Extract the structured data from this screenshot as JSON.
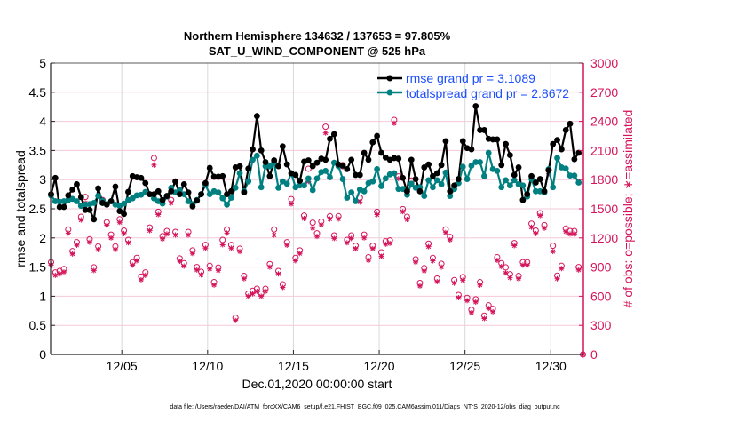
{
  "chart_data": {
    "type": "line",
    "title": "Northern Hemisphere 134632 / 137653 = 97.805%",
    "subtitle": "SAT_U_WIND_COMPONENT @ 525 hPa",
    "xlabel": "Dec.01,2020 00:00:00 start",
    "ylabel_left": "rmse and totalspread",
    "ylabel_right": "# of obs: o=possible; ∗=assimilated",
    "footer": "data file: /Users/raeder/DAI/ATM_forcXX/CAM6_setup/f.e21.FHIST_BGC.f09_025.CAM6assim.011/Diags_NTrS_2020-12/obs_diag_output.nc",
    "x_units": "days since Dec.01,2020 00:00",
    "xlim": [
      -0.15,
      30.9
    ],
    "ylim_left": [
      0,
      5
    ],
    "ylim_right": [
      0,
      3000
    ],
    "x_start": -0.125,
    "x_step": 0.25,
    "x_ticks": [
      {
        "value": 4,
        "label": "12/05"
      },
      {
        "value": 9,
        "label": "12/10"
      },
      {
        "value": 14,
        "label": "12/15"
      },
      {
        "value": 19,
        "label": "12/20"
      },
      {
        "value": 24,
        "label": "12/25"
      },
      {
        "value": 29,
        "label": "12/30"
      }
    ],
    "y_left_ticks": [
      "0",
      "0.5",
      "1",
      "1.5",
      "2",
      "2.5",
      "3",
      "3.5",
      "4",
      "4.5",
      "5"
    ],
    "y_right_ticks": [
      "0",
      "300",
      "600",
      "900",
      "1200",
      "1500",
      "1800",
      "2100",
      "2400",
      "2700",
      "3000"
    ],
    "grid": true,
    "legend_position": "top-right",
    "colors": {
      "rmse": "#000000",
      "totalspread": "#008080",
      "obs": "#d4145a",
      "legend_text": "#1a4dff",
      "grid_h": "#f5c9d9",
      "grid_v": "#d9d9d9"
    },
    "series": [
      {
        "name": "rmse",
        "legend": "rmse grand pr = 3.1089",
        "axis": "left",
        "values": [
          2.75,
          3.03,
          2.53,
          2.53,
          2.73,
          2.83,
          2.92,
          2.7,
          2.48,
          2.48,
          2.32,
          2.85,
          2.6,
          2.57,
          2.63,
          2.88,
          2.46,
          2.41,
          2.79,
          3.06,
          3.04,
          3.03,
          2.94,
          2.75,
          2.75,
          2.8,
          2.65,
          2.72,
          2.8,
          2.97,
          2.75,
          2.92,
          2.78,
          2.54,
          2.64,
          2.75,
          2.94,
          3.2,
          3.05,
          3.05,
          3.06,
          2.75,
          2.8,
          3.21,
          3.23,
          2.78,
          3.19,
          3.52,
          4.09,
          3.5,
          3.3,
          3.06,
          3.33,
          3.23,
          3.57,
          3.26,
          3.11,
          3.08,
          2.98,
          3.31,
          3.33,
          3.23,
          3.29,
          3.36,
          3.34,
          3.7,
          3.78,
          3.26,
          3.24,
          3.18,
          3.34,
          3.08,
          3.08,
          3.46,
          3.34,
          3.64,
          3.75,
          3.46,
          3.38,
          3.34,
          3.37,
          3.36,
          3.03,
          2.8,
          3.34,
          3.01,
          2.8,
          3.21,
          3.26,
          3.06,
          3.11,
          3.25,
          3.66,
          2.8,
          2.9,
          3.01,
          3.66,
          3.54,
          3.52,
          4.26,
          3.85,
          3.85,
          3.7,
          3.69,
          3.69,
          3.25,
          3.61,
          3.42,
          3.08,
          3.21,
          2.65,
          2.75,
          3.06,
          2.95,
          3.01,
          2.8,
          3.16,
          3.61,
          3.68,
          3.52,
          3.85,
          3.96,
          3.35,
          3.46
        ]
      },
      {
        "name": "totalspread",
        "legend": "totalspread grand pr = 2.8672",
        "axis": "left",
        "values": [
          2.73,
          2.63,
          2.62,
          2.63,
          2.65,
          2.67,
          2.63,
          2.55,
          2.57,
          2.58,
          2.6,
          2.72,
          2.64,
          2.58,
          2.63,
          2.57,
          2.55,
          2.59,
          2.65,
          2.68,
          2.73,
          2.74,
          2.79,
          2.75,
          2.68,
          2.63,
          2.59,
          2.71,
          2.86,
          2.78,
          2.82,
          2.75,
          2.63,
          2.58,
          2.65,
          2.75,
          2.91,
          2.75,
          2.8,
          2.78,
          2.68,
          2.57,
          2.69,
          2.86,
          3.11,
          2.8,
          2.97,
          3.34,
          3.41,
          2.87,
          3.23,
          3.23,
          3.29,
          2.86,
          2.97,
          2.93,
          3.11,
          2.87,
          2.9,
          2.9,
          3.02,
          2.82,
          3.02,
          3.13,
          3.15,
          3.04,
          3.29,
          3.23,
          3.01,
          2.69,
          2.78,
          2.63,
          2.83,
          2.8,
          2.94,
          2.97,
          3.18,
          2.89,
          3.02,
          3.09,
          3.11,
          2.84,
          2.84,
          2.74,
          2.93,
          2.86,
          2.87,
          2.72,
          2.99,
          2.87,
          2.99,
          2.92,
          3.12,
          2.72,
          2.84,
          2.94,
          3.22,
          3.01,
          3.24,
          3.3,
          3.3,
          3.06,
          3.46,
          3.18,
          3.15,
          2.87,
          2.99,
          2.9,
          2.99,
          2.92,
          2.9,
          2.71,
          3.01,
          2.8,
          2.8,
          2.78,
          3.18,
          2.87,
          3.37,
          3.21,
          3.19,
          3.07,
          3.07,
          2.95
        ]
      },
      {
        "name": "obs_possible",
        "axis": "right",
        "marker": "o",
        "values": [
          950,
          845,
          860,
          880,
          1287,
          1064,
          1156,
          1418,
          1622,
          1187,
          897,
          1113,
          1590,
          1362,
          1234,
          1113,
          1392,
          1276,
          1180,
          950,
          995,
          802,
          845,
          1307,
          2022,
          1469,
          1219,
          1271,
          1590,
          1262,
          989,
          940,
          1262,
          1071,
          900,
          852,
          1128,
          913,
          745,
          895,
          1180,
          1287,
          1128,
          378,
          1089,
          809,
          626,
          656,
          677,
          626,
          677,
          931,
          1287,
          860,
          723,
          1156,
          1600,
          995,
          1071,
          1430,
          1912,
          1357,
          1247,
          1369,
          2345,
          1424,
          1226,
          1424,
          1949,
          1180,
          1226,
          1119,
          1613,
          1234,
          1002,
          1119,
          1469,
          1052,
          1165,
          1174,
          2415,
          1833,
          1497,
          1418,
          1790,
          980,
          736,
          889,
          1141,
          995,
          782,
          934,
          1287,
          1211,
          766,
          613,
          797,
          583,
          461,
          568,
          745,
          400,
          506,
          470,
          1002,
          940,
          897,
          827,
          1147,
          809,
          950,
          950,
          1347,
          1276,
          1454,
          1332,
          1897,
          1119,
          812,
          913,
          1296,
          1271,
          1271,
          900,
          0
        ]
      },
      {
        "name": "obs_assimilated",
        "axis": "right",
        "marker": "*",
        "values": [
          920,
          815,
          830,
          850,
          1250,
          1035,
          1125,
          1385,
          1560,
          1155,
          865,
          1080,
          1560,
          1330,
          1200,
          1080,
          1360,
          1245,
          1150,
          920,
          965,
          770,
          815,
          1275,
          1950,
          1440,
          1190,
          1240,
          1560,
          1230,
          960,
          910,
          1230,
          1040,
          870,
          820,
          1095,
          880,
          715,
          865,
          1130,
          1250,
          1095,
          350,
          1060,
          780,
          600,
          625,
          650,
          600,
          650,
          900,
          1230,
          830,
          690,
          1125,
          1550,
          965,
          1040,
          1400,
          1780,
          1300,
          1215,
          1335,
          2280,
          1395,
          1195,
          1395,
          1930,
          1150,
          1195,
          1090,
          1570,
          1200,
          970,
          1090,
          1440,
          1010,
          1135,
          1145,
          2380,
          1810,
          1470,
          1390,
          1760,
          950,
          705,
          860,
          1110,
          965,
          750,
          900,
          1255,
          1180,
          735,
          585,
          765,
          555,
          430,
          540,
          715,
          370,
          475,
          440,
          970,
          905,
          840,
          790,
          1120,
          780,
          920,
          920,
          1310,
          1245,
          1430,
          1300,
          1860,
          1060,
          780,
          885,
          1265,
          1240,
          1240,
          870,
          0
        ]
      }
    ]
  }
}
